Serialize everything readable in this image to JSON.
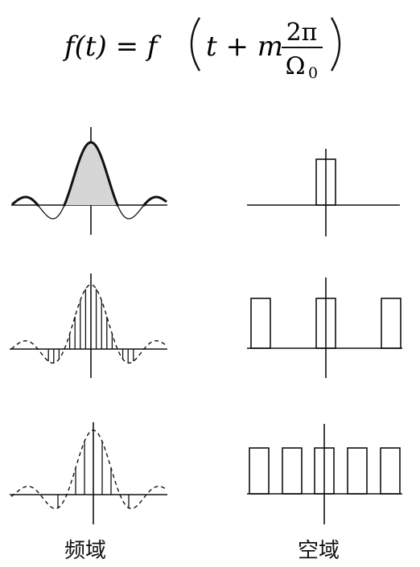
{
  "formula": {
    "lhs": "f(t) = f",
    "arg_prefix": "t + m",
    "numerator": "2π",
    "denominator_symbol": "Ω",
    "denominator_subscript": "0"
  },
  "captions": {
    "frequency_domain": "频域",
    "spatial_domain": "空域"
  },
  "rows": [
    {
      "sample_count": 0,
      "pulse_count": 1
    },
    {
      "sample_count": 7,
      "pulse_count": 3
    },
    {
      "sample_count": 5,
      "pulse_count": 5
    }
  ]
}
